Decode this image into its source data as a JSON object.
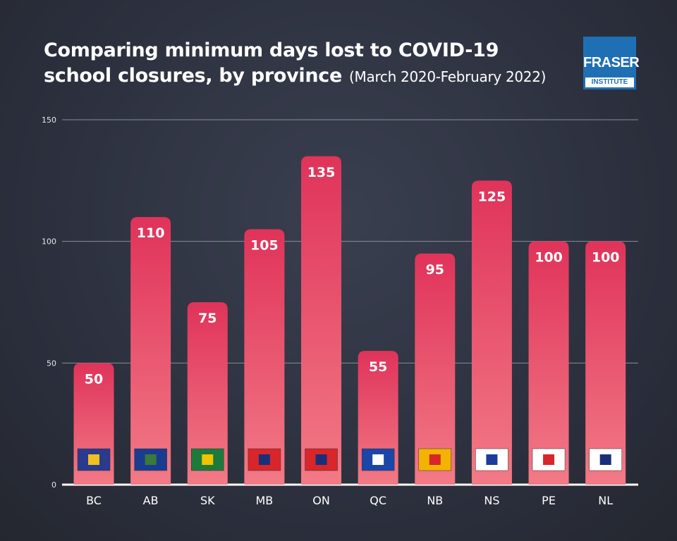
{
  "chart_data": {
    "type": "bar",
    "title": [
      "Comparing minimum days lost to COVID-19",
      "school closures, by province"
    ],
    "subtitle": "(March 2020-February 2022)",
    "categories": [
      "BC",
      "AB",
      "SK",
      "MB",
      "ON",
      "QC",
      "NB",
      "NS",
      "PE",
      "NL"
    ],
    "values": [
      50,
      110,
      75,
      105,
      135,
      55,
      95,
      125,
      100,
      100
    ],
    "color": "#e8476a",
    "ylim": [
      0,
      150
    ],
    "yticks": [
      0,
      50,
      100,
      150
    ],
    "grid": true
  },
  "logo": {
    "top": "FRASER",
    "bottom": "INSTITUTE"
  }
}
